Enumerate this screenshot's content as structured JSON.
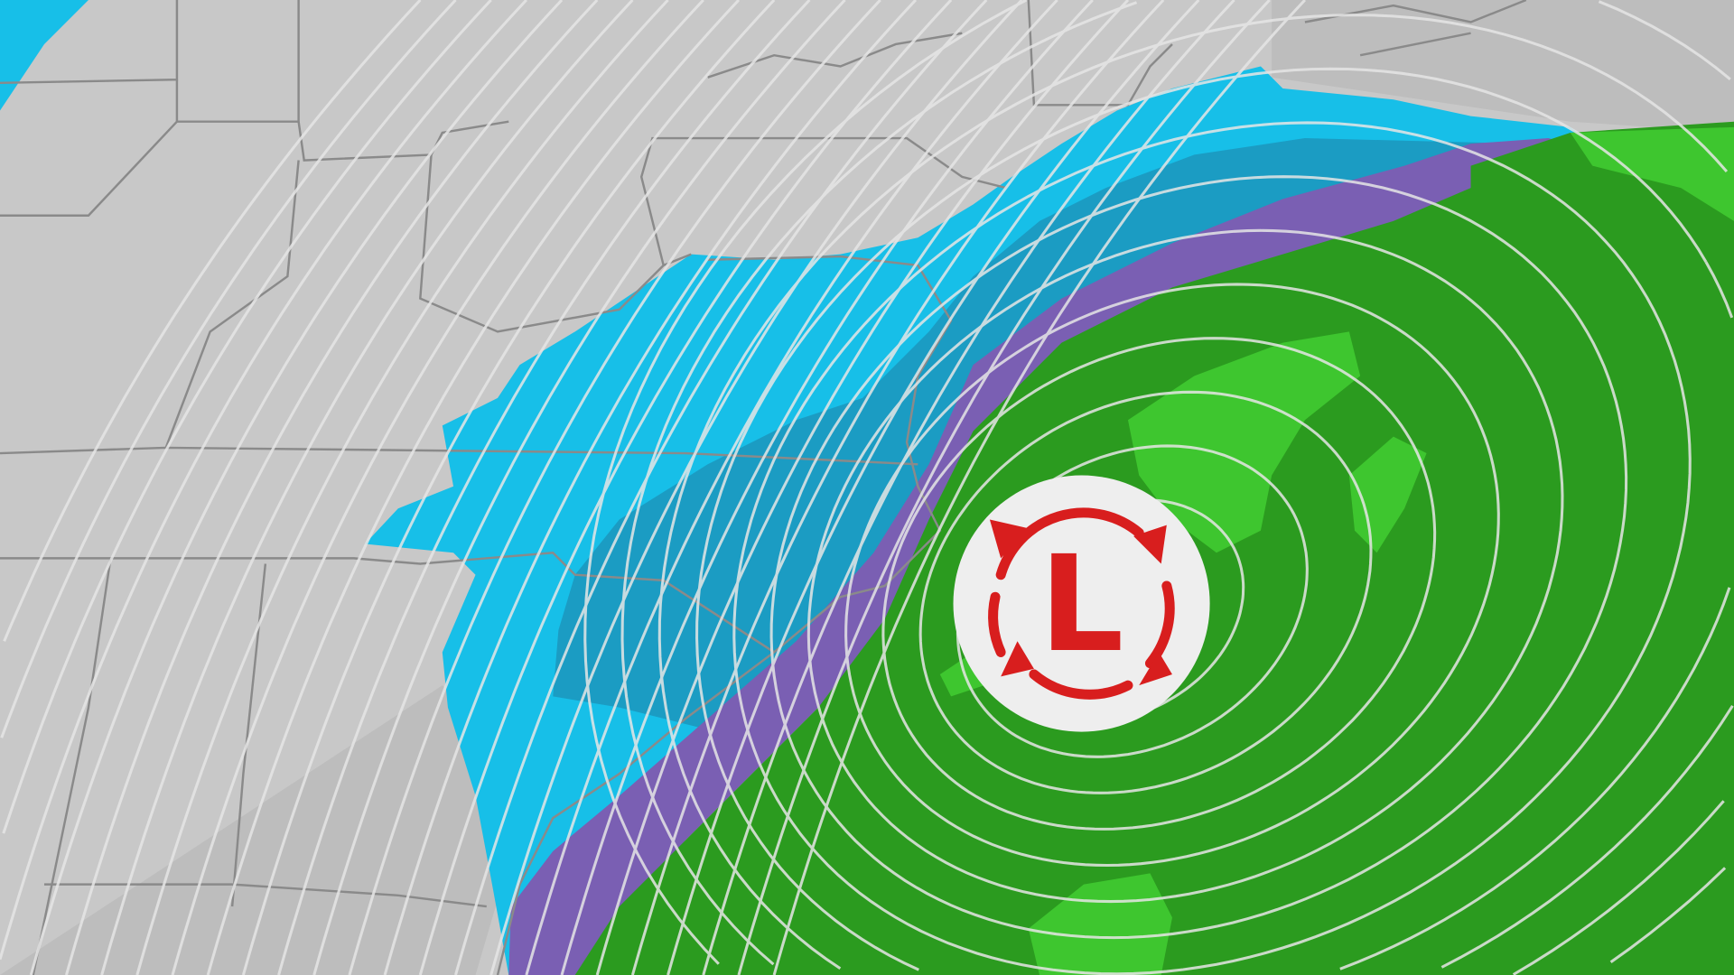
{
  "map": {
    "type": "weather-forecast-map",
    "region": "eastern-north-america",
    "colors": {
      "land": "#c8c8c8",
      "ocean": "#bdbdbd",
      "borders": "#8a8a8a",
      "isobars": "#e8e8e8",
      "snow_light": "#17bfe8",
      "snow_heavy": "#1b9cc3",
      "mix": "#7a5fb3",
      "rain": "#2b9b1f",
      "rain_heavy": "#3ec62f",
      "low_symbol_red": "#d81e1e",
      "low_symbol_bg": "#eeeeee"
    },
    "low_pressure": {
      "label": "L",
      "icon": "low-pressure-circulation-icon"
    }
  }
}
